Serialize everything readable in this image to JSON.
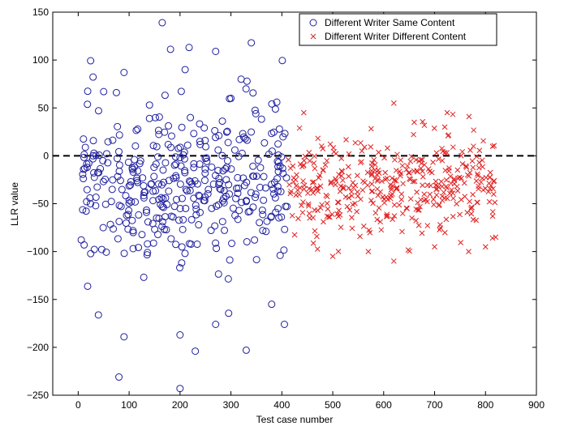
{
  "chart_data": {
    "type": "scatter",
    "xlabel": "Test case number",
    "ylabel": "LLR value",
    "xlim": [
      -50,
      900
    ],
    "ylim": [
      -250,
      150
    ],
    "xticks": [
      0,
      100,
      200,
      300,
      400,
      500,
      600,
      700,
      800,
      900
    ],
    "yticks": [
      -250,
      -200,
      -150,
      -100,
      -50,
      0,
      50,
      100,
      150
    ],
    "reference_line": {
      "y": 0,
      "style": "dashed",
      "color": "#000000"
    },
    "legend_position": "top-right",
    "series": [
      {
        "name": "Different Writer Same Content",
        "marker": "circle",
        "color": "#1f1fa0",
        "n": 410,
        "x_range": [
          1,
          410
        ],
        "y_center": -28,
        "y_spread": 48,
        "y_min": -243,
        "y_max": 139,
        "seed": 11,
        "points": [
          {
            "x": 165,
            "y": 139
          },
          {
            "x": 340,
            "y": 118
          },
          {
            "x": 270,
            "y": 109
          },
          {
            "x": 210,
            "y": 90
          },
          {
            "x": 320,
            "y": 80
          },
          {
            "x": 90,
            "y": 87
          },
          {
            "x": 50,
            "y": 67
          },
          {
            "x": 300,
            "y": 60
          },
          {
            "x": 390,
            "y": 56
          },
          {
            "x": 75,
            "y": 66
          },
          {
            "x": 40,
            "y": 47
          },
          {
            "x": 140,
            "y": 53
          },
          {
            "x": 80,
            "y": -231
          },
          {
            "x": 200,
            "y": -243
          },
          {
            "x": 230,
            "y": -204
          },
          {
            "x": 330,
            "y": -203
          },
          {
            "x": 90,
            "y": -189
          },
          {
            "x": 200,
            "y": -187
          },
          {
            "x": 270,
            "y": -176
          },
          {
            "x": 405,
            "y": -176
          },
          {
            "x": 380,
            "y": -155
          }
        ]
      },
      {
        "name": "Different Writer Different Content",
        "marker": "x",
        "color": "#e02020",
        "n": 410,
        "x_range": [
          411,
          820
        ],
        "y_center": -30,
        "y_spread": 30,
        "y_min": -110,
        "y_max": 55,
        "seed": 23,
        "points": [
          {
            "x": 620,
            "y": 55
          },
          {
            "x": 660,
            "y": 35
          },
          {
            "x": 720,
            "y": 30
          },
          {
            "x": 500,
            "y": -105
          },
          {
            "x": 620,
            "y": -110
          },
          {
            "x": 700,
            "y": -95
          },
          {
            "x": 800,
            "y": -95
          },
          {
            "x": 820,
            "y": -85
          }
        ]
      }
    ]
  }
}
